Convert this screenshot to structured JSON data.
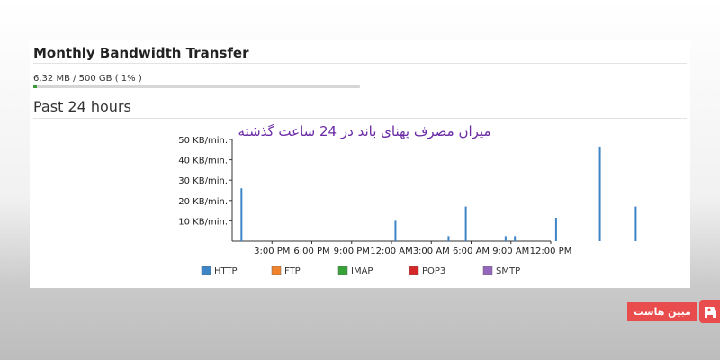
{
  "header": {
    "title": "Monthly Bandwidth Transfer",
    "usage_text": "6.32 MB / 500 GB ( 1% )",
    "usage_fraction": 0.01,
    "subtitle": "Past 24 hours"
  },
  "overlay": {
    "persian_caption": "میزان مصرف پهنای باند در 24 ساعت گذشته",
    "brand_label": "مبین هاست"
  },
  "colors": {
    "http": "#3d85c6",
    "ftp": "#f0832b",
    "imap": "#35a336",
    "pop3": "#d62728",
    "smtp": "#9467bd",
    "caption": "#6b2aa6",
    "brand": "#e84c4c"
  },
  "chart_data": {
    "type": "bar",
    "y_ticks": [
      "50 KB/min.",
      "40 KB/min.",
      "30 KB/min.",
      "20 KB/min.",
      "10 KB/min."
    ],
    "ylim": [
      0,
      50
    ],
    "x_ticks": [
      "3:00 PM",
      "6:00 PM",
      "9:00 PM",
      "12:00 AM",
      "3:00 AM",
      "6:00 AM",
      "9:00 AM",
      "12:00 PM"
    ],
    "x_tick_hours": [
      3,
      6,
      9,
      12,
      15,
      18,
      21,
      24
    ],
    "series": [
      {
        "name": "HTTP",
        "hours": [
          0.7,
          12.3,
          16.3,
          17.6,
          20.6,
          21.3,
          24.4,
          27.7,
          30.4
        ],
        "values": [
          26,
          10,
          2.5,
          17,
          2.5,
          2.5,
          11.5,
          46.5,
          17
        ]
      },
      {
        "name": "FTP",
        "hours": [],
        "values": []
      },
      {
        "name": "IMAP",
        "hours": [],
        "values": []
      },
      {
        "name": "POP3",
        "hours": [],
        "values": []
      },
      {
        "name": "SMTP",
        "hours": [],
        "values": []
      }
    ],
    "legend": [
      "HTTP",
      "FTP",
      "IMAP",
      "POP3",
      "SMTP"
    ],
    "legend_position": "bottom",
    "grid": false
  }
}
